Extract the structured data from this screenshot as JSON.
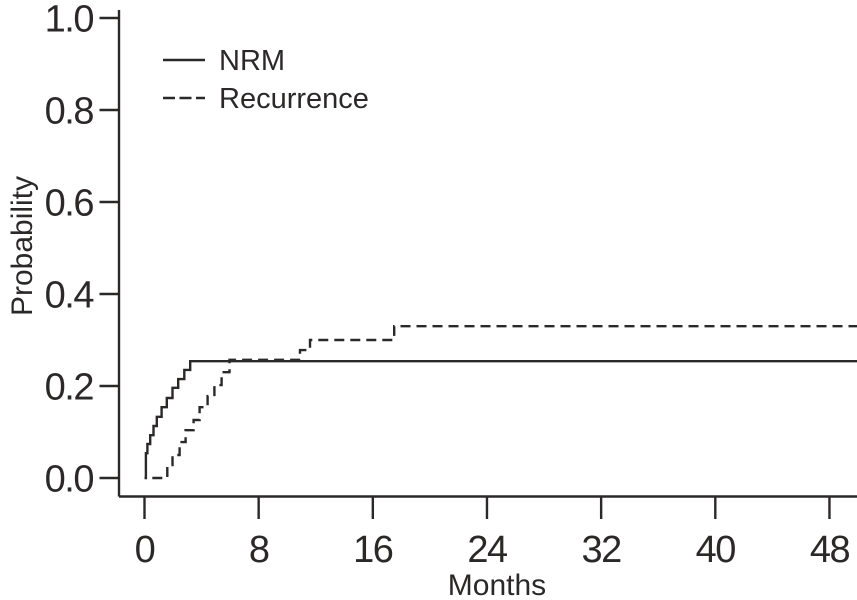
{
  "colors": {
    "ink": "#2b2828",
    "background": "#ffffff"
  },
  "chart_data": {
    "type": "line",
    "subtype": "step-cumulative-incidence",
    "title": "",
    "xlabel": "Months",
    "ylabel": "Probability",
    "xlim": [
      0,
      50
    ],
    "ylim": [
      0,
      1.0
    ],
    "xticks": [
      0,
      8,
      16,
      24,
      32,
      40,
      48
    ],
    "yticks": [
      0,
      0.2,
      0.4,
      0.6,
      0.8,
      1.0
    ],
    "ytick_labels": [
      "0.0",
      "0.2",
      "0.4",
      "0.6",
      "0.8",
      "1.0"
    ],
    "grid": false,
    "legend": {
      "position": "top-left",
      "entries": [
        {
          "label": "NRM",
          "line": "solid"
        },
        {
          "label": "Recurrence",
          "line": "dashed"
        }
      ]
    },
    "series": [
      {
        "name": "NRM",
        "line": "solid",
        "start_month": 0,
        "end_month": 50,
        "final_value": 0.254,
        "steps": [
          [
            0.1,
            0.054
          ],
          [
            0.2,
            0.074
          ],
          [
            0.4,
            0.093
          ],
          [
            0.63,
            0.113
          ],
          [
            0.86,
            0.133
          ],
          [
            1.2,
            0.154
          ],
          [
            1.56,
            0.174
          ],
          [
            1.96,
            0.196
          ],
          [
            2.36,
            0.215
          ],
          [
            2.79,
            0.235
          ],
          [
            3.2,
            0.254
          ]
        ]
      },
      {
        "name": "Recurrence",
        "line": "dashed",
        "start_month": 0.55,
        "end_month": 50,
        "final_value": 0.33,
        "steps": [
          [
            1.6,
            0.028
          ],
          [
            1.96,
            0.05
          ],
          [
            2.46,
            0.078
          ],
          [
            2.88,
            0.104
          ],
          [
            3.44,
            0.126
          ],
          [
            3.86,
            0.154
          ],
          [
            4.42,
            0.178
          ],
          [
            4.9,
            0.202
          ],
          [
            5.4,
            0.23
          ],
          [
            5.96,
            0.257
          ],
          [
            10.9,
            0.278
          ],
          [
            11.6,
            0.3
          ],
          [
            17.5,
            0.33
          ]
        ]
      }
    ]
  }
}
